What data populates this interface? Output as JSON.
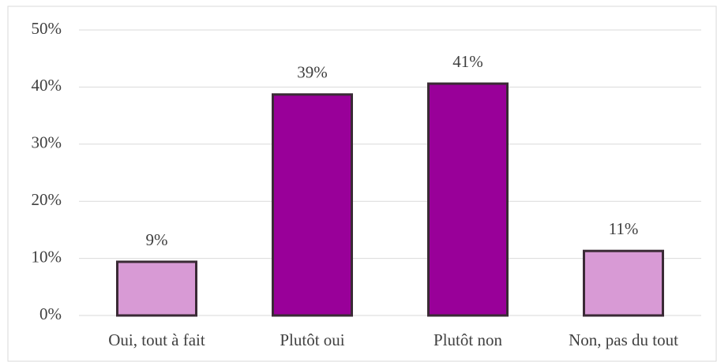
{
  "chart_data": {
    "type": "bar",
    "categories": [
      "Oui, tout à fait",
      "Plutôt oui",
      "Plutôt non",
      "Non, pas du tout"
    ],
    "values": [
      9.4,
      38.7,
      40.6,
      11.3
    ],
    "value_labels": [
      "9%",
      "39%",
      "41%",
      "11%"
    ],
    "colors": [
      "#d89ad5",
      "#990099",
      "#990099",
      "#d89ad5"
    ],
    "ylim": [
      0,
      50
    ],
    "yticks": [
      {
        "value": 0,
        "label": "0%"
      },
      {
        "value": 10,
        "label": "10%"
      },
      {
        "value": 20,
        "label": "20%"
      },
      {
        "value": 30,
        "label": "30%"
      },
      {
        "value": 40,
        "label": "40%"
      },
      {
        "value": 50,
        "label": "50%"
      }
    ],
    "grid": true
  }
}
